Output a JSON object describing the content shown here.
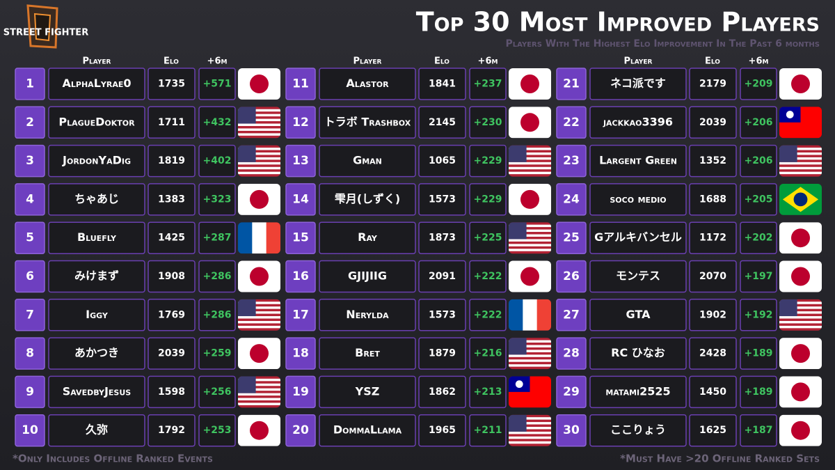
{
  "logo": "STREET FIGHTER",
  "title": "Top 30 Most Improved Players",
  "subtitle": "Players With The Highest Elo Improvement In The Past 6 months",
  "columns": [
    "Player",
    "Elo",
    "+6m"
  ],
  "rows": [
    {
      "rank": 1,
      "player": "AlphaLyrae0",
      "elo": 1735,
      "gain": "+571"
    },
    {
      "rank": 2,
      "player": "PlagueDoktor",
      "elo": 1711,
      "gain": "+432"
    },
    {
      "rank": 3,
      "player": "JordonYaDig",
      "elo": 1819,
      "gain": "+402"
    },
    {
      "rank": 4,
      "player": "ちゃあじ",
      "elo": 1383,
      "gain": "+323"
    },
    {
      "rank": 5,
      "player": "Bluefly",
      "elo": 1425,
      "gain": "+287"
    },
    {
      "rank": 6,
      "player": "みけまず",
      "elo": 1908,
      "gain": "+286"
    },
    {
      "rank": 7,
      "player": "Iggy",
      "elo": 1769,
      "gain": "+286"
    },
    {
      "rank": 8,
      "player": "あかつき",
      "elo": 2039,
      "gain": "+259"
    },
    {
      "rank": 9,
      "player": "SavedbyJesus",
      "elo": 1598,
      "gain": "+256"
    },
    {
      "rank": 10,
      "player": "久弥",
      "elo": 1792,
      "gain": "+253"
    },
    {
      "rank": 11,
      "player": "Alastor",
      "elo": 1841,
      "gain": "+237"
    },
    {
      "rank": 12,
      "player": "トラボ Trashbox",
      "elo": 2145,
      "gain": "+230"
    },
    {
      "rank": 13,
      "player": "Gman",
      "elo": 1065,
      "gain": "+229"
    },
    {
      "rank": 14,
      "player": "雫月(しずく)",
      "elo": 1573,
      "gain": "+229"
    },
    {
      "rank": 15,
      "player": "Ray",
      "elo": 1873,
      "gain": "+225"
    },
    {
      "rank": 16,
      "player": "GJIJIIG",
      "elo": 2091,
      "gain": "+222"
    },
    {
      "rank": 17,
      "player": "Nerylda",
      "elo": 1573,
      "gain": "+222"
    },
    {
      "rank": 18,
      "player": "Bret",
      "elo": 1879,
      "gain": "+216"
    },
    {
      "rank": 19,
      "player": "YSZ",
      "elo": 1862,
      "gain": "+213"
    },
    {
      "rank": 20,
      "player": "DommaLlama",
      "elo": 1965,
      "gain": "+211"
    },
    {
      "rank": 21,
      "player": "ネコ派です",
      "elo": 2179,
      "gain": "+209"
    },
    {
      "rank": 22,
      "player": "jackkao3396",
      "elo": 2039,
      "gain": "+206"
    },
    {
      "rank": 23,
      "player": "Largent Green",
      "elo": 1352,
      "gain": "+206"
    },
    {
      "rank": 24,
      "player": "soco medio",
      "elo": 1688,
      "gain": "+205"
    },
    {
      "rank": 25,
      "player": "Gアルキバンセル",
      "elo": 1172,
      "gain": "+202"
    },
    {
      "rank": 26,
      "player": "モンテス",
      "elo": 2070,
      "gain": "+197"
    },
    {
      "rank": 27,
      "player": "GTA",
      "elo": 1902,
      "gain": "+192"
    },
    {
      "rank": 28,
      "player": "RC ひなお",
      "elo": 2428,
      "gain": "+189"
    },
    {
      "rank": 29,
      "player": "matami2525",
      "elo": 1450,
      "gain": "+189"
    },
    {
      "rank": 30,
      "player": "ここりょう",
      "elo": 1625,
      "gain": "+187"
    }
  ],
  "footnote_left": "*Only Includes Offline Ranked Events",
  "footnote_right": "*Must Have >20 Offline Ranked Sets"
}
